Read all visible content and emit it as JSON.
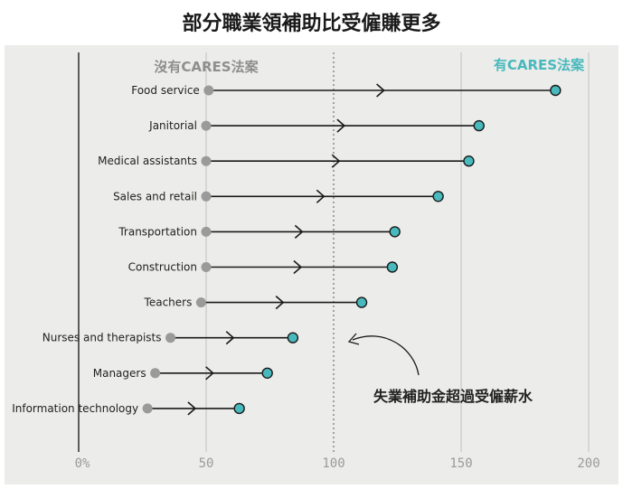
{
  "title": "部分職業領補助比受僱賺更多",
  "colors": {
    "background": "#ececea",
    "without_dot": "#9a9a9a",
    "with_dot": "#48b9bd",
    "line": "#1a1a1a",
    "legend_left": "#8f8f8f",
    "legend_right": "#48b9bd"
  },
  "chart_data": {
    "type": "dumbbell",
    "legend": {
      "left": "沒有CARES法案",
      "right": "有CARES法案"
    },
    "categories": [
      "Food service",
      "Janitorial",
      "Medical assistants",
      "Sales and retail",
      "Transportation",
      "Construction",
      "Teachers",
      "Nurses and therapists",
      "Managers",
      "Information technology"
    ],
    "series": [
      {
        "name": "沒有CARES法案",
        "values": [
          51,
          50,
          50,
          50,
          50,
          50,
          48,
          36,
          30,
          27
        ]
      },
      {
        "name": "有CARES法案",
        "values": [
          187,
          157,
          153,
          141,
          124,
          123,
          111,
          84,
          74,
          63
        ]
      }
    ],
    "x_ticks": [
      "0%",
      "50",
      "100",
      "150",
      "200"
    ],
    "x_tick_values": [
      0,
      50,
      100,
      150,
      200
    ],
    "xlim": [
      0,
      200
    ],
    "reference_line": 100,
    "annotation": "失業補助金超過受僱薪水"
  }
}
